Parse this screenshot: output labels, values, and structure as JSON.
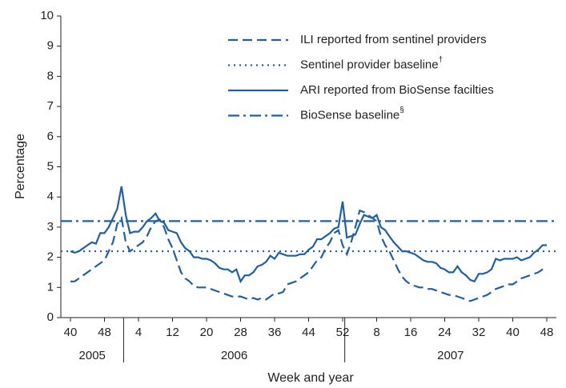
{
  "chart_data": {
    "type": "line",
    "y_label": "Percentage",
    "x_label": "Week and year",
    "ylim": [
      0,
      10
    ],
    "yticks": [
      0,
      1,
      2,
      3,
      4,
      5,
      6,
      7,
      8,
      9,
      10
    ],
    "categories": [
      "40",
      null,
      null,
      null,
      null,
      null,
      null,
      null,
      "48",
      null,
      null,
      null,
      null,
      null,
      null,
      null,
      "4",
      null,
      null,
      null,
      null,
      null,
      null,
      null,
      "12",
      null,
      null,
      null,
      null,
      null,
      null,
      null,
      "20",
      null,
      null,
      null,
      null,
      null,
      null,
      null,
      "28",
      null,
      null,
      null,
      null,
      null,
      null,
      null,
      "36",
      null,
      null,
      null,
      null,
      null,
      null,
      null,
      "44",
      null,
      null,
      null,
      null,
      null,
      null,
      null,
      "52",
      null,
      null,
      null,
      null,
      null,
      null,
      null,
      "8",
      null,
      null,
      null,
      null,
      null,
      null,
      null,
      "16",
      null,
      null,
      null,
      null,
      null,
      null,
      null,
      "24",
      null,
      null,
      null,
      null,
      null,
      null,
      null,
      "32",
      null,
      null,
      null,
      null,
      null,
      null,
      null,
      "40",
      null,
      null,
      null,
      null,
      null,
      null,
      null,
      "48"
    ],
    "groups": [
      {
        "label": "2005",
        "count": 13
      },
      {
        "label": "2006",
        "count": 52
      },
      {
        "label": "2007",
        "count": 48
      }
    ],
    "series": [
      {
        "name": "ILI reported from sentinel providers",
        "color": "#1f5fa6",
        "style": "dashed",
        "values": [
          1.2,
          1.2,
          1.3,
          1.4,
          1.5,
          1.6,
          1.7,
          1.8,
          1.9,
          2.2,
          2.5,
          3.1,
          3.3,
          2.5,
          2.2,
          2.3,
          2.4,
          2.5,
          2.7,
          3.0,
          3.2,
          3.25,
          3.0,
          2.6,
          2.3,
          1.9,
          1.5,
          1.3,
          1.2,
          1.05,
          1.0,
          1.0,
          1.0,
          0.95,
          0.9,
          0.85,
          0.8,
          0.75,
          0.7,
          0.7,
          0.7,
          0.65,
          0.6,
          0.65,
          0.6,
          0.65,
          0.6,
          0.7,
          0.8,
          0.8,
          0.85,
          1.1,
          1.15,
          1.2,
          1.3,
          1.4,
          1.5,
          1.7,
          1.9,
          2.0,
          2.3,
          2.5,
          2.8,
          2.9,
          2.4,
          2.1,
          2.5,
          3.0,
          3.55,
          3.5,
          3.4,
          3.3,
          3.2,
          2.7,
          2.4,
          2.2,
          1.9,
          1.6,
          1.35,
          1.2,
          1.1,
          1.05,
          1.0,
          1.0,
          0.95,
          0.95,
          0.9,
          0.85,
          0.8,
          0.75,
          0.75,
          0.7,
          0.65,
          0.6,
          0.55,
          0.6,
          0.65,
          0.7,
          0.75,
          0.85,
          0.95,
          1.0,
          1.05,
          1.1,
          1.1,
          1.2,
          1.3,
          1.35,
          1.4,
          1.45,
          1.5,
          1.6,
          1.65
        ]
      },
      {
        "name": "Sentinel provider baseline",
        "name_note": "†",
        "color": "#1f5fa6",
        "style": "dotted",
        "value": 2.2
      },
      {
        "name": "ARI reported from BioSense facilties",
        "color": "#1f5fa6",
        "style": "solid",
        "values": [
          2.2,
          2.15,
          2.2,
          2.3,
          2.4,
          2.5,
          2.45,
          2.8,
          2.8,
          3.0,
          3.3,
          3.6,
          4.35,
          3.4,
          2.8,
          2.85,
          2.85,
          3.0,
          3.2,
          3.3,
          3.45,
          3.2,
          3.15,
          2.9,
          2.85,
          2.8,
          2.5,
          2.3,
          2.2,
          2.0,
          2.0,
          1.95,
          1.95,
          1.9,
          1.8,
          1.65,
          1.6,
          1.6,
          1.5,
          1.6,
          1.2,
          1.4,
          1.4,
          1.5,
          1.7,
          1.75,
          1.85,
          2.05,
          1.95,
          2.15,
          2.1,
          2.05,
          2.05,
          2.05,
          2.1,
          2.1,
          2.25,
          2.35,
          2.6,
          2.6,
          2.7,
          2.8,
          2.95,
          3.0,
          3.85,
          2.65,
          2.7,
          2.75,
          3.1,
          3.4,
          3.35,
          3.3,
          3.4,
          3.0,
          2.9,
          2.7,
          2.5,
          2.35,
          2.2,
          2.2,
          2.15,
          2.1,
          2.0,
          1.9,
          1.85,
          1.85,
          1.8,
          1.65,
          1.6,
          1.5,
          1.5,
          1.7,
          1.5,
          1.4,
          1.25,
          1.2,
          1.45,
          1.45,
          1.5,
          1.6,
          1.95,
          1.9,
          1.95,
          1.95,
          1.95,
          2.0,
          1.9,
          1.95,
          2.0,
          2.15,
          2.25,
          2.4,
          2.4
        ]
      },
      {
        "name": "BioSense baseline",
        "name_note": "§",
        "color": "#1f5fa6",
        "style": "dashdot",
        "value": 3.2
      }
    ]
  }
}
